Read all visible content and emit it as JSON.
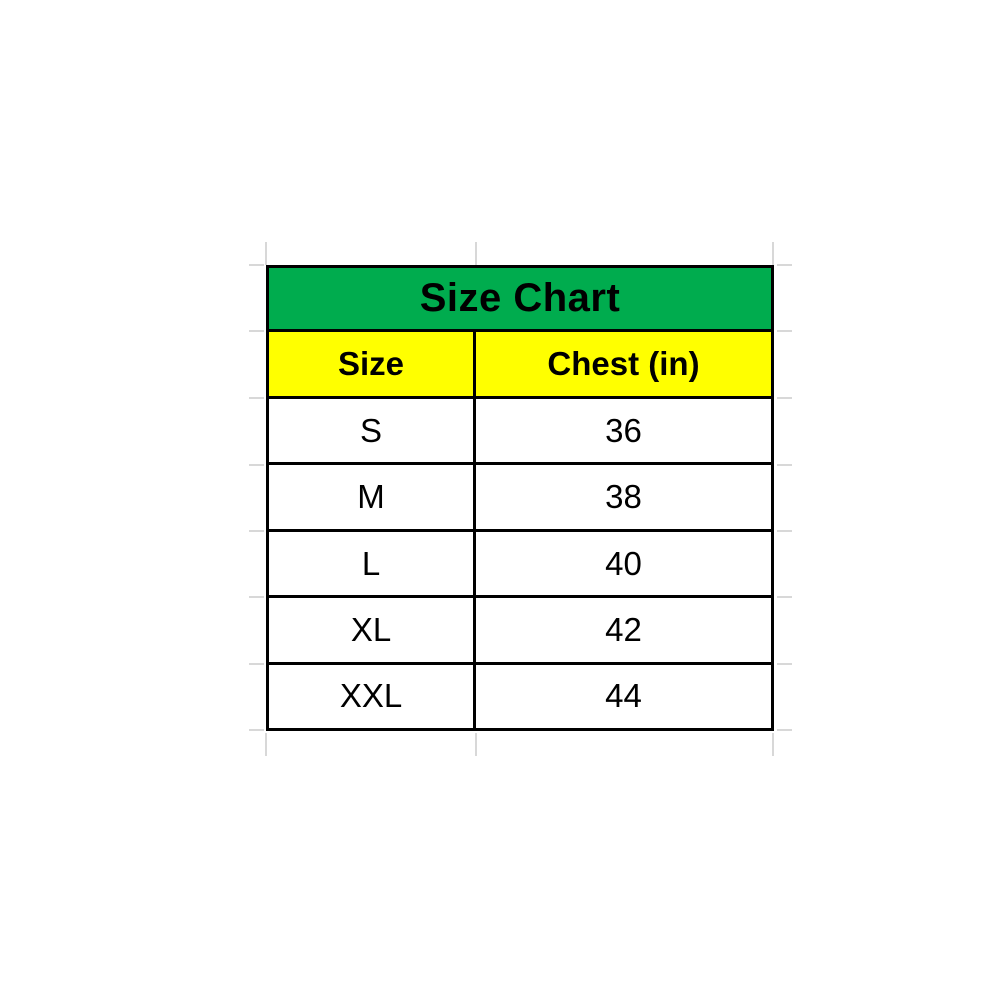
{
  "chart_data": {
    "type": "table",
    "title": "Size Chart",
    "columns": [
      "Size",
      "Chest (in)"
    ],
    "rows": [
      [
        "S",
        "36"
      ],
      [
        "M",
        "38"
      ],
      [
        "L",
        "40"
      ],
      [
        "XL",
        "42"
      ],
      [
        "XXL",
        "44"
      ]
    ]
  },
  "colors": {
    "title_bg": "#00AC4E",
    "header_bg": "#FFFF00",
    "border": "#000000",
    "gridline": "#D8D8D8",
    "text": "#000000",
    "cell_bg": "#FFFFFF"
  }
}
